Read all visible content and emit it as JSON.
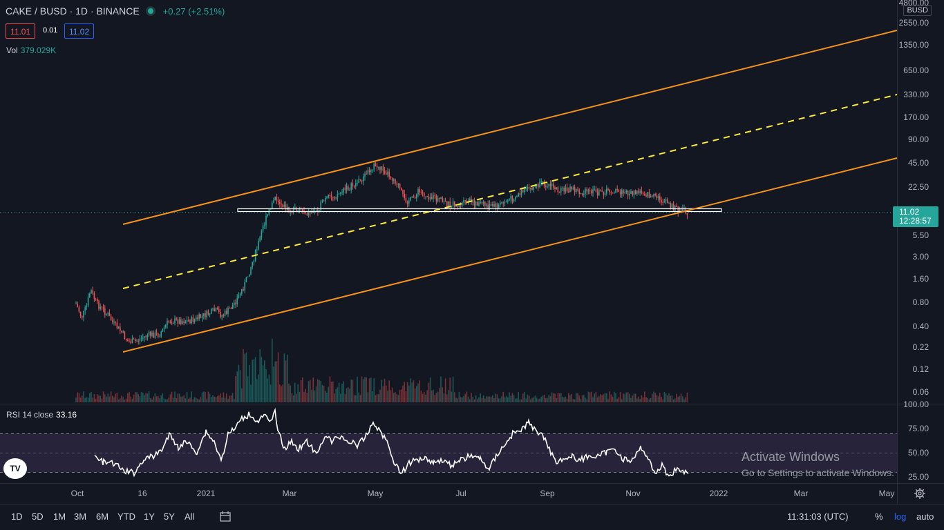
{
  "header": {
    "symbol": "CAKE / BUSD · 1D · BINANCE",
    "change": "+0.27 (+2.51%)",
    "bid": "11.01",
    "spread": "0.01",
    "ask": "11.02",
    "volume_label": "Vol",
    "volume_value": "379.029K"
  },
  "price_scale": {
    "currency": "BUSD",
    "labels": [
      "4800.00",
      "2550.00",
      "1350.00",
      "650.00",
      "330.00",
      "170.00",
      "90.00",
      "45.00",
      "22.50",
      "5.50",
      "3.00",
      "1.60",
      "0.80",
      "0.40",
      "0.22",
      "0.12",
      "0.06"
    ],
    "current_price": "11.02",
    "countdown": "12:28:57"
  },
  "rsi": {
    "label": "RSI 14 close",
    "value": "33.16",
    "scale": [
      "100.00",
      "75.00",
      "50.00",
      "25.00"
    ]
  },
  "time_axis": {
    "labels": [
      "Oct",
      "16",
      "2021",
      "Mar",
      "May",
      "Jul",
      "Sep",
      "Nov",
      "2022",
      "Mar",
      "May"
    ]
  },
  "toolbar": {
    "ranges": [
      "1D",
      "5D",
      "1M",
      "3M",
      "6M",
      "YTD",
      "1Y",
      "5Y",
      "All"
    ],
    "clock": "11:31:03 (UTC)",
    "percent": "%",
    "log": "log",
    "auto": "auto"
  },
  "watermark": {
    "title": "Activate Windows",
    "subtitle": "Go to Settings to activate Windows."
  },
  "logo": "TV",
  "colors": {
    "background": "#131722",
    "up": "#26a69a",
    "down": "#ef5350",
    "channel": "#f7931a",
    "midline": "#ffeb3b",
    "rsi_line": "#ffffff",
    "rsi_band": "#2a2640",
    "accent": "#2962ff"
  }
}
